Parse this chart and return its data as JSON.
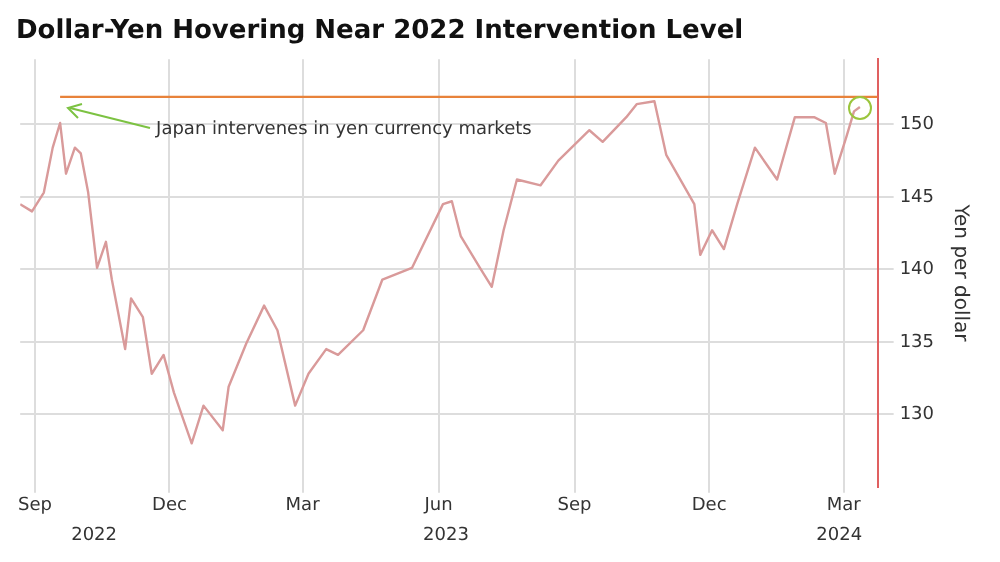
{
  "chart_data": {
    "type": "line",
    "title": "Dollar-Yen Hovering Near 2022 Intervention Level",
    "ylabel": "Yen per dollar",
    "xlim": [
      "2022-09-05",
      "2024-04-07"
    ],
    "xticks": [
      {
        "value": "2022-09-15",
        "label": "Sep"
      },
      {
        "value": "2022-12-15",
        "label": "Dec"
      },
      {
        "value": "2023-03-15",
        "label": "Mar"
      },
      {
        "value": "2023-06-15",
        "label": "Jun"
      },
      {
        "value": "2023-09-15",
        "label": "Sep"
      },
      {
        "value": "2023-12-15",
        "label": "Dec"
      },
      {
        "value": "2024-03-15",
        "label": "Mar"
      }
    ],
    "x2lim": [
      "2022-09-05",
      "2024-04-07"
    ],
    "x2ticks": [
      {
        "value": "2022-10-25",
        "label": "2022"
      },
      {
        "value": "2023-06-20",
        "label": "2023"
      },
      {
        "value": "2024-03-12",
        "label": "2024"
      }
    ],
    "ylim": [
      125,
      154.5
    ],
    "yticks": [
      130,
      135,
      140,
      145,
      150
    ],
    "grid": true,
    "legend": false,
    "series": [
      {
        "color": "#d99a9a",
        "x": [
          "2022-09-05",
          "2022-09-13",
          "2022-09-21",
          "2022-09-27",
          "2022-10-02",
          "2022-10-06",
          "2022-10-12",
          "2022-10-16",
          "2022-10-21",
          "2022-10-24",
          "2022-10-27",
          "2022-11-02",
          "2022-11-06",
          "2022-11-15",
          "2022-11-19",
          "2022-11-27",
          "2022-12-03",
          "2022-12-11",
          "2022-12-18",
          "2022-12-30",
          "2023-01-07",
          "2023-01-20",
          "2023-01-24",
          "2023-02-05",
          "2023-02-17",
          "2023-02-26",
          "2023-03-10",
          "2023-03-19",
          "2023-03-31",
          "2023-04-08",
          "2023-04-25",
          "2023-05-08",
          "2023-05-28",
          "2023-06-18",
          "2023-06-24",
          "2023-06-30",
          "2023-07-13",
          "2023-07-21",
          "2023-07-29",
          "2023-08-07",
          "2023-08-23",
          "2023-09-04",
          "2023-09-25",
          "2023-10-04",
          "2023-10-20",
          "2023-10-27",
          "2023-11-08",
          "2023-11-16",
          "2023-12-05",
          "2023-12-09",
          "2023-12-17",
          "2023-12-25",
          "2024-01-03",
          "2024-01-15",
          "2024-01-30",
          "2024-02-11",
          "2024-02-24",
          "2024-03-03",
          "2024-03-09",
          "2024-03-17",
          "2024-03-22",
          "2024-03-26"
        ],
        "values": [
          144.5,
          144.0,
          145.3,
          148.4,
          150.1,
          146.6,
          148.4,
          148.0,
          145.3,
          142.7,
          140.1,
          141.9,
          139.3,
          134.5,
          138.0,
          136.7,
          132.8,
          134.1,
          131.5,
          128.0,
          130.6,
          128.9,
          131.9,
          134.9,
          137.5,
          135.8,
          130.6,
          132.8,
          134.5,
          134.1,
          135.8,
          139.3,
          140.1,
          144.5,
          144.7,
          142.3,
          140.1,
          138.8,
          142.7,
          146.2,
          145.8,
          147.5,
          149.6,
          148.8,
          150.5,
          151.4,
          151.6,
          147.9,
          144.5,
          141.0,
          142.7,
          141.4,
          144.5,
          148.4,
          146.2,
          150.5,
          150.5,
          150.1,
          146.6,
          149.2,
          150.9,
          151.2
        ]
      },
      {
        "type": "line",
        "color": "#e8823a",
        "x": [
          "2022-10-02",
          "2024-04-07"
        ],
        "values": [
          151.9,
          151.9
        ]
      }
    ],
    "annotations": [
      {
        "text": "Japan intervenes in yen currency markets",
        "x": "2022-10-02",
        "y": 150.1
      }
    ]
  }
}
